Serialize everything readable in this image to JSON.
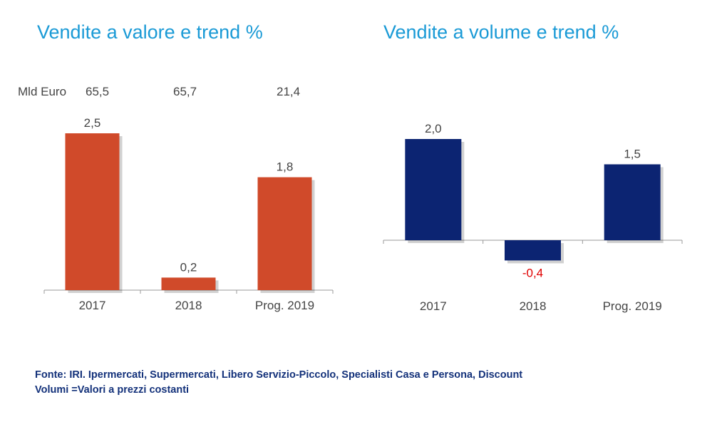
{
  "titles": {
    "left": "Vendite a valore e trend %",
    "right": "Vendite a volume e trend %"
  },
  "mld": {
    "label": "Mld Euro",
    "values": [
      "65,5",
      "65,7",
      "21,4"
    ]
  },
  "footer": {
    "line1": "Fonte: IRI. Ipermercati, Supermercati, Libero Servizio-Piccolo, Specialisti Casa e Persona, Discount",
    "line2": "Volumi =Valori a prezzi costanti"
  },
  "colors": {
    "title": "#1a9ad6",
    "value_bars": "#d04a2a",
    "volume_bars": "#0c2472",
    "negative_label": "#e00000",
    "text": "#444444",
    "footer": "#13317a"
  },
  "chart_data": [
    {
      "type": "bar",
      "title": "Vendite a valore e trend %",
      "categories": [
        "2017",
        "2018",
        "Prog. 2019"
      ],
      "values": [
        2.5,
        0.2,
        1.8
      ],
      "value_labels": [
        "2,5",
        "0,2",
        "1,8"
      ],
      "ylim": [
        0,
        2.5
      ],
      "grid": false
    },
    {
      "type": "bar",
      "title": "Vendite a volume e trend %",
      "categories": [
        "2017",
        "2018",
        "Prog. 2019"
      ],
      "values": [
        2.0,
        -0.4,
        1.5
      ],
      "value_labels": [
        "2,0",
        "-0,4",
        "1,5"
      ],
      "ylim": [
        -0.4,
        2.0
      ],
      "grid": false
    }
  ]
}
